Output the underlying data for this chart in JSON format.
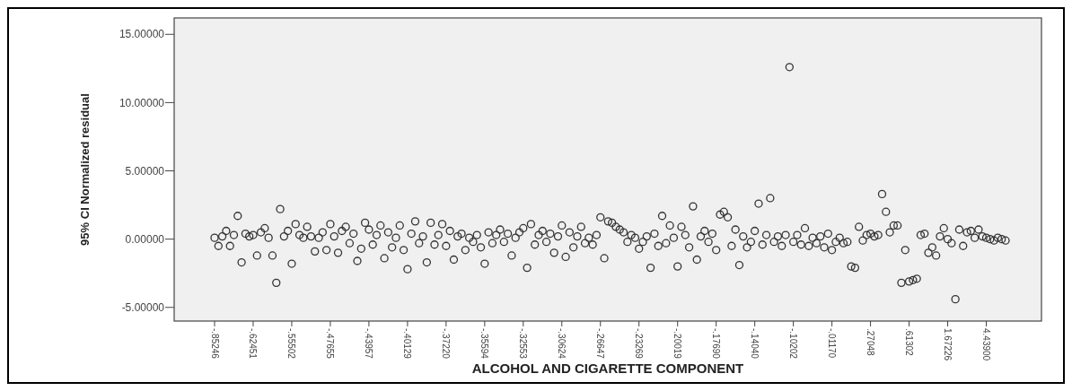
{
  "chart_data": {
    "type": "scatter",
    "xlabel": "ALCOHOL AND CIGARETTE COMPONENT",
    "ylabel": "95% CI Normalized residual",
    "categories": [
      "-.85246",
      null,
      null,
      null,
      null,
      null,
      null,
      null,
      null,
      null,
      "-.62451",
      null,
      null,
      null,
      null,
      null,
      null,
      null,
      null,
      null,
      "-.55502",
      null,
      null,
      null,
      null,
      null,
      null,
      null,
      null,
      null,
      "-.47655",
      null,
      null,
      null,
      null,
      null,
      null,
      null,
      null,
      null,
      "-.43957",
      null,
      null,
      null,
      null,
      null,
      null,
      null,
      null,
      null,
      "-.40129",
      null,
      null,
      null,
      null,
      null,
      null,
      null,
      null,
      null,
      "-.37220",
      null,
      null,
      null,
      null,
      null,
      null,
      null,
      null,
      null,
      "-.35594",
      null,
      null,
      null,
      null,
      null,
      null,
      null,
      null,
      null,
      "-.32553",
      null,
      null,
      null,
      null,
      null,
      null,
      null,
      null,
      null,
      "-.30624",
      null,
      null,
      null,
      null,
      null,
      null,
      null,
      null,
      null,
      "-.26647",
      null,
      null,
      null,
      null,
      null,
      null,
      null,
      null,
      null,
      "-.23269",
      null,
      null,
      null,
      null,
      null,
      null,
      null,
      null,
      null,
      "-.20019",
      null,
      null,
      null,
      null,
      null,
      null,
      null,
      null,
      null,
      "-.17690",
      null,
      null,
      null,
      null,
      null,
      null,
      null,
      null,
      null,
      "-.14040",
      null,
      null,
      null,
      null,
      null,
      null,
      null,
      null,
      null,
      "-.10202",
      null,
      null,
      null,
      null,
      null,
      null,
      null,
      null,
      null,
      "-.01170",
      null,
      null,
      null,
      null,
      null,
      null,
      null,
      null,
      null,
      ".27048",
      null,
      null,
      null,
      null,
      null,
      null,
      null,
      null,
      null,
      ".61302",
      null,
      null,
      null,
      null,
      null,
      null,
      null,
      null,
      null,
      "1.67226",
      null,
      null,
      null,
      null,
      null,
      null,
      null,
      null,
      null,
      "4.43900",
      null,
      null,
      null,
      null,
      null
    ],
    "series": [
      {
        "color": "#333333",
        "values": [
          0.1,
          -0.5,
          0.2,
          0.6,
          -0.5,
          0.3,
          1.7,
          -1.7,
          0.4,
          0.2,
          0.3,
          -1.2,
          0.5,
          0.8,
          0.1,
          -1.2,
          -3.2,
          2.2,
          0.2,
          0.6,
          -1.8,
          1.1,
          0.3,
          0.1,
          0.9,
          0.2,
          -0.9,
          0.1,
          0.5,
          -0.8,
          1.1,
          0.2,
          -1.0,
          0.6,
          0.9,
          -0.3,
          0.4,
          -1.6,
          -0.7,
          1.2,
          0.7,
          -0.4,
          0.3,
          1.0,
          -1.4,
          0.5,
          -0.6,
          0.1,
          1.0,
          -0.8,
          -2.2,
          0.4,
          1.3,
          -0.3,
          0.2,
          -1.7,
          1.2,
          -0.4,
          0.3,
          1.1,
          -0.5,
          0.6,
          -1.5,
          0.2,
          0.4,
          -0.8,
          0.1,
          -0.2,
          0.3,
          -0.6,
          -1.8,
          0.5,
          -0.3,
          0.3,
          0.7,
          -0.2,
          0.4,
          -1.2,
          0.1,
          0.5,
          0.8,
          -2.1,
          1.1,
          -0.4,
          0.3,
          0.6,
          -0.2,
          0.4,
          -1.0,
          0.2,
          1.0,
          -1.3,
          0.5,
          -0.6,
          0.2,
          0.9,
          -0.3,
          0.1,
          -0.4,
          0.3,
          1.6,
          -1.4,
          1.3,
          1.2,
          0.9,
          0.7,
          0.5,
          -0.2,
          0.3,
          0.1,
          -0.7,
          -0.2,
          0.2,
          -2.1,
          0.4,
          -0.5,
          1.7,
          -0.3,
          1.0,
          0.1,
          -2.0,
          0.9,
          0.3,
          -0.6,
          2.4,
          -1.5,
          0.2,
          0.6,
          -0.2,
          0.4,
          -0.8,
          1.8,
          2.0,
          1.6,
          -0.5,
          0.7,
          -1.9,
          0.2,
          -0.6,
          -0.2,
          0.6,
          2.6,
          -0.4,
          0.3,
          3.0,
          -0.2,
          0.2,
          -0.5,
          0.3,
          12.6,
          -0.2,
          0.3,
          -0.4,
          0.8,
          -0.5,
          0.1,
          -0.3,
          0.2,
          -0.6,
          0.4,
          -0.8,
          -0.2,
          0.1,
          -0.3,
          -0.2,
          -2.0,
          -2.1,
          0.9,
          -0.1,
          0.3,
          0.4,
          0.2,
          0.3,
          3.3,
          2.0,
          0.5,
          1.0,
          1.0,
          -3.2,
          -0.8,
          -3.1,
          -3.0,
          -2.9,
          0.3,
          0.4,
          -1.0,
          -0.6,
          -1.2,
          0.2,
          0.8,
          0.0,
          -0.3,
          -4.4,
          0.7,
          -0.5,
          0.5,
          0.6,
          0.1,
          0.7,
          0.2,
          0.1,
          0.0,
          -0.1,
          0.1,
          0.0,
          -0.1
        ]
      }
    ],
    "ylim": [
      -6,
      16.2
    ],
    "yticks": [
      {
        "value": -5,
        "label": "-5.00000"
      },
      {
        "value": 0,
        "label": "0.00000"
      },
      {
        "value": 5,
        "label": "5.00000"
      },
      {
        "value": 10,
        "label": "10.00000"
      },
      {
        "value": 15,
        "label": "15.00000"
      }
    ],
    "marker": "circle",
    "grid": false
  }
}
